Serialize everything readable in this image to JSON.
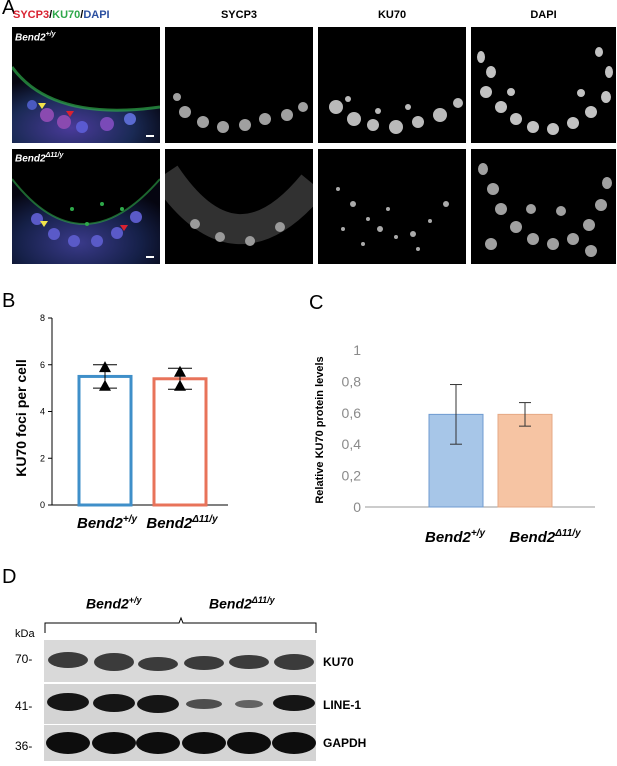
{
  "panel_a": {
    "letter": "A",
    "header_sycp3": "SYCP3",
    "header_sep1": "/",
    "header_ku70": "KU70",
    "header_sep2": "/",
    "header_dapi": "DAPI",
    "col_titles": [
      "SYCP3",
      "KU70",
      "DAPI"
    ],
    "row1_label_base": "Bend2",
    "row1_label_sup": "+/y",
    "row2_label_base": "Bend2",
    "row2_label_sup": "Δ11/y",
    "colors": {
      "sycp3": "#d92231",
      "ku70": "#2ea84a",
      "dapi": "#2b4fa0"
    }
  },
  "panel_b": {
    "letter": "B",
    "chart_data": {
      "type": "bar",
      "ylabel": "KU70 foci per cell",
      "ylim": [
        0,
        8
      ],
      "yticks": [
        "0",
        "2",
        "4",
        "6",
        "8"
      ],
      "categories": [
        "Bend2+/y",
        "Bend2Δ11/y"
      ],
      "category_labels": [
        {
          "base": "Bend2",
          "sup": "+/y"
        },
        {
          "base": "Bend2",
          "sup": "Δ11/y"
        }
      ],
      "values": [
        5.5,
        5.4
      ],
      "error": [
        0.5,
        0.45
      ],
      "points": [
        [
          5.9,
          5.1
        ],
        [
          5.7,
          5.1
        ]
      ],
      "bar_colors": [
        "#3f8fc9",
        "#e8735a"
      ]
    }
  },
  "panel_c": {
    "letter": "C",
    "chart_data": {
      "type": "bar",
      "ylabel": "Relative KU70 protein levels",
      "ylim": [
        0,
        1
      ],
      "yticks": [
        "0",
        "0,2",
        "0,4",
        "0,6",
        "0,8",
        "1"
      ],
      "categories": [
        "Bend2+/y",
        "Bend2Δ11/y"
      ],
      "category_labels": [
        {
          "base": "Bend2",
          "sup": "+/y"
        },
        {
          "base": "Bend2",
          "sup": "Δ11/y"
        }
      ],
      "values": [
        0.59,
        0.59
      ],
      "error": [
        0.19,
        0.075
      ],
      "bar_colors": [
        "#a7c6e8",
        "#f6c4a3"
      ],
      "bar_edge_colors": [
        "#6f9bd0",
        "#e5a884"
      ]
    }
  },
  "panel_d": {
    "letter": "D",
    "group1_base": "Bend2",
    "group1_sup": "+/y",
    "group2_base": "Bend2",
    "group2_sup": "Δ11/y",
    "kda_label": "kDa",
    "markers": [
      "70-",
      "41-",
      "36-"
    ],
    "bands": [
      "KU70",
      "LINE-1",
      "GAPDH"
    ]
  }
}
